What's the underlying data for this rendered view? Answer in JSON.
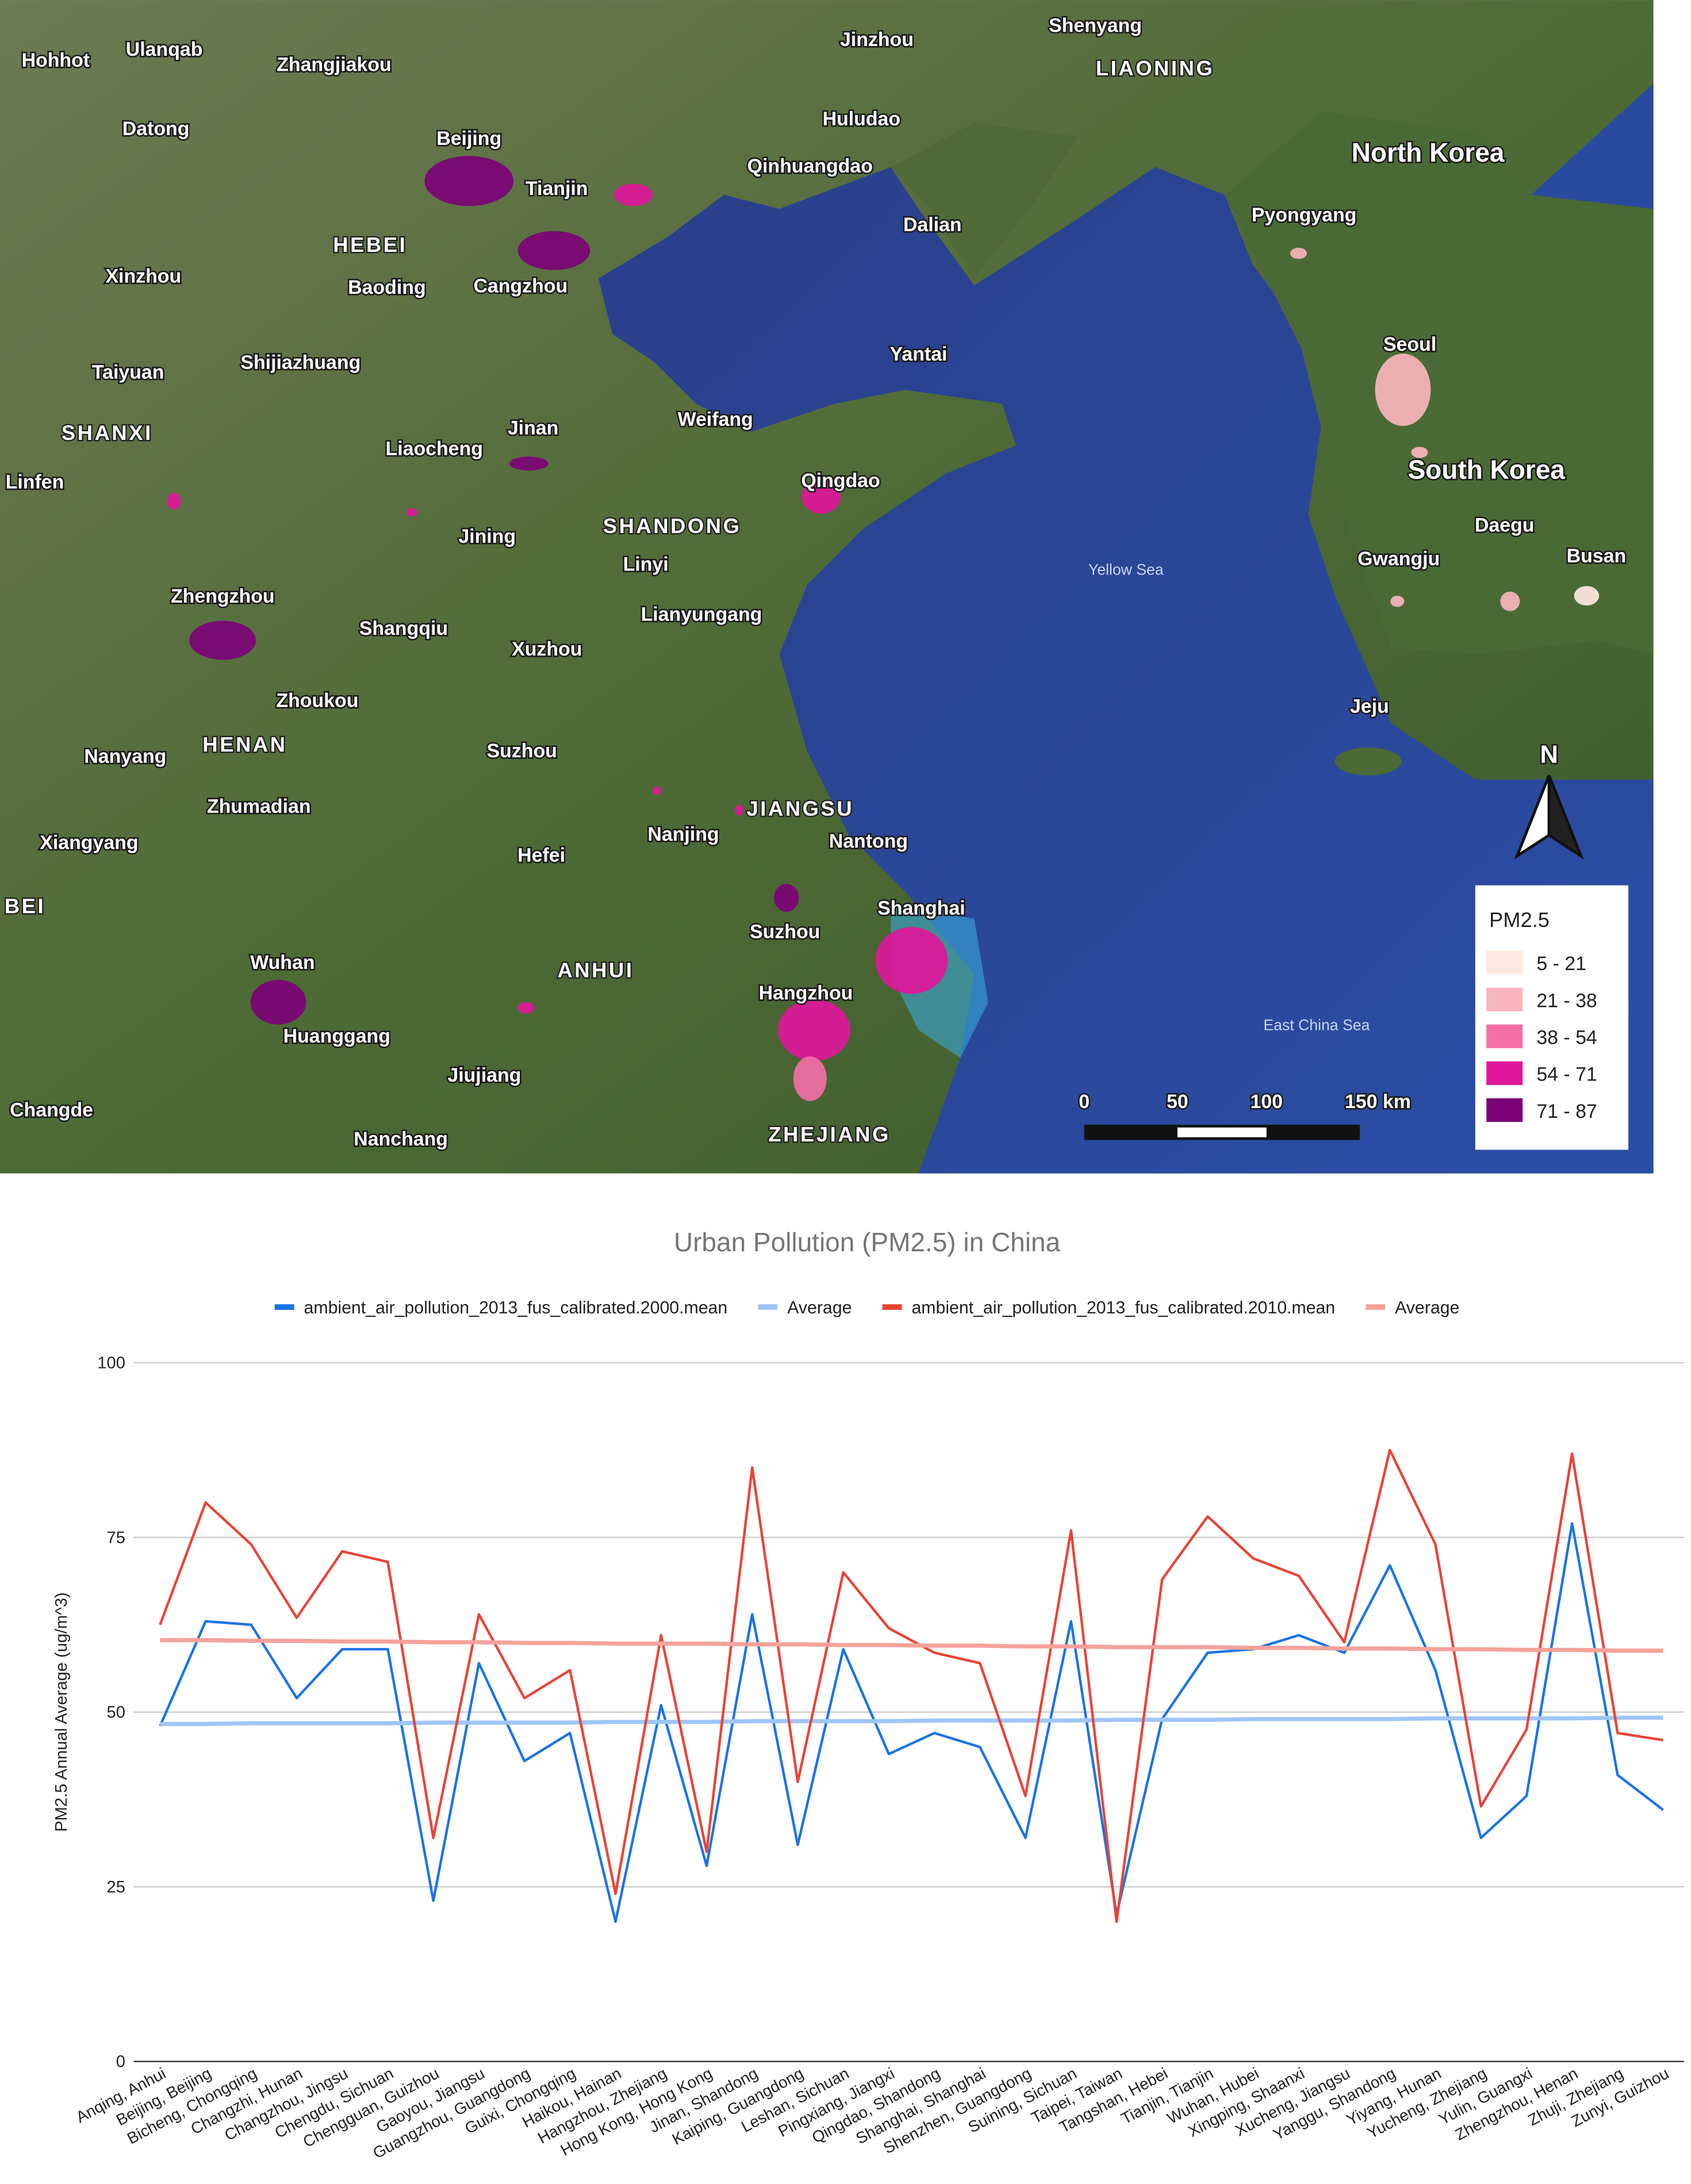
{
  "map": {
    "labels": [
      "Hohhot",
      "Ulanqab",
      "Zhangjiakou",
      "Datong",
      "Beijing",
      "Tianjin",
      "HEBEI",
      "Baoding",
      "Cangzhou",
      "Xinzhou",
      "Shijiazhuang",
      "Taiyuan",
      "SHANXI",
      "Jinan",
      "Liaocheng",
      "Linfen",
      "Jining",
      "SHANDONG",
      "Linyi",
      "Lianyungang",
      "Zhengzhou",
      "Shangqiu",
      "Xuzhou",
      "Zhoukou",
      "HENAN",
      "Nanyang",
      "Suzhou",
      "Zhumadian",
      "Xiangyang",
      "Hefei",
      "Nanjing",
      "JIANGSU",
      "Nantong",
      "Suzhou",
      "Shanghai",
      "Wuhan",
      "Huanggang",
      "ANHUI",
      "Hangzhou",
      "Jiujiang",
      "Changde",
      "Nanchang",
      "ZHEJIANG",
      "Weifang",
      "Qingdao",
      "Yantai",
      "Dalian",
      "Huludao",
      "Qinhuangdao",
      "Jinzhou",
      "Shenyang",
      "LIAONING",
      "North Korea",
      "Pyongyang",
      "Seoul",
      "South Korea",
      "Daegu",
      "Gwangju",
      "Busan",
      "Jeju",
      "Yellow Sea",
      "East China Sea",
      "BEI"
    ],
    "legend": {
      "title": "PM2.5",
      "items": [
        {
          "label": "5 - 21",
          "color": "#fde9e1"
        },
        {
          "label": "21 - 38",
          "color": "#f8b5bd"
        },
        {
          "label": "38 - 54",
          "color": "#f36fa6"
        },
        {
          "label": "54 - 71",
          "color": "#e0179a"
        },
        {
          "label": "71 - 87",
          "color": "#7c0277"
        }
      ]
    },
    "scale_labels": [
      "0",
      "50",
      "100",
      "150 km"
    ],
    "north": "N"
  },
  "chart_data": {
    "type": "line",
    "title": "Urban Pollution (PM2.5) in China",
    "y_label": "PM2.5 Annual Average (ug/m^3)",
    "categories": [
      "Anqing, Anhui",
      "Beijing, Beijing",
      "Bicheng, Chongqing",
      "Changzhi, Hunan",
      "Changzhou, Jingsu",
      "Chengdu, Sichuan",
      "Chengguan, Guizhou",
      "Gaoyou, Jiangsu",
      "Guangzhou, Guangdong",
      "Guixi, Chongqing",
      "Haikou, Hainan",
      "Hangzhou, Zhejiang",
      "Hong Kong, Hong Kong",
      "Jinan, Shandong",
      "Kaiping, Guangdong",
      "Leshan, Sichuan",
      "Pingxiang, Jiangxi",
      "Qingdao, Shandong",
      "Shanghai, Shanghai",
      "Shenzhen, Guangdong",
      "Suining, Sichuan",
      "Taipei, Taiwan",
      "Tangshan, Hebei",
      "Tianjin, Tianjin",
      "Wuhan, Hubei",
      "Xingping, Shaanxi",
      "Xucheng, Jiangsu",
      "Yanggu, Shandong",
      "Yiyang, Hunan",
      "Yucheng, Zhejiang",
      "Yulin, Guangxi",
      "Zhengzhou, Henan",
      "Zhuji, Zhejiang",
      "Zunyi, Guizhou"
    ],
    "series": [
      {
        "name": "ambient_air_pollution_2013_fus_calibrated.2000.mean",
        "color": "#1a73e8",
        "values": [
          48,
          63,
          62.5,
          52,
          59,
          59,
          23,
          57,
          43,
          47,
          20,
          51,
          28,
          64,
          31,
          59,
          44,
          47,
          45,
          32,
          63,
          21,
          49,
          58.5,
          59,
          61,
          58.5,
          71,
          56,
          32,
          38,
          77,
          41,
          36
        ]
      },
      {
        "name": "Average",
        "color": "#9fc5f8",
        "values": [
          48.3,
          48.3,
          48.4,
          48.4,
          48.4,
          48.4,
          48.5,
          48.5,
          48.5,
          48.5,
          48.6,
          48.6,
          48.6,
          48.7,
          48.7,
          48.7,
          48.7,
          48.8,
          48.8,
          48.8,
          48.8,
          48.9,
          48.9,
          48.9,
          49.0,
          49.0,
          49.0,
          49.0,
          49.1,
          49.1,
          49.1,
          49.1,
          49.2,
          49.2
        ]
      },
      {
        "name": "ambient_air_pollution_2013_fus_calibrated.2010.mean",
        "color": "#ea4335",
        "values": [
          62.5,
          80,
          74,
          63.5,
          73,
          71.5,
          32,
          64,
          52,
          56,
          24,
          61,
          30,
          85,
          40,
          70,
          62,
          58.5,
          57,
          38,
          76,
          20,
          69,
          78,
          72,
          69.5,
          60,
          87.5,
          74,
          36.5,
          47.5,
          87,
          47,
          46
        ]
      },
      {
        "name": "Average",
        "color": "#f4a29a",
        "values": [
          60.3,
          60.3,
          60.2,
          60.2,
          60.1,
          60.1,
          60.0,
          60.0,
          59.9,
          59.9,
          59.8,
          59.8,
          59.8,
          59.7,
          59.7,
          59.6,
          59.6,
          59.5,
          59.5,
          59.4,
          59.4,
          59.3,
          59.3,
          59.3,
          59.2,
          59.2,
          59.1,
          59.1,
          59.0,
          59.0,
          58.9,
          58.9,
          58.8,
          58.8
        ]
      }
    ],
    "ylim": [
      0,
      100
    ],
    "yticks": [
      0,
      25,
      50,
      75,
      100
    ],
    "grid": true,
    "legend_position": "top"
  }
}
